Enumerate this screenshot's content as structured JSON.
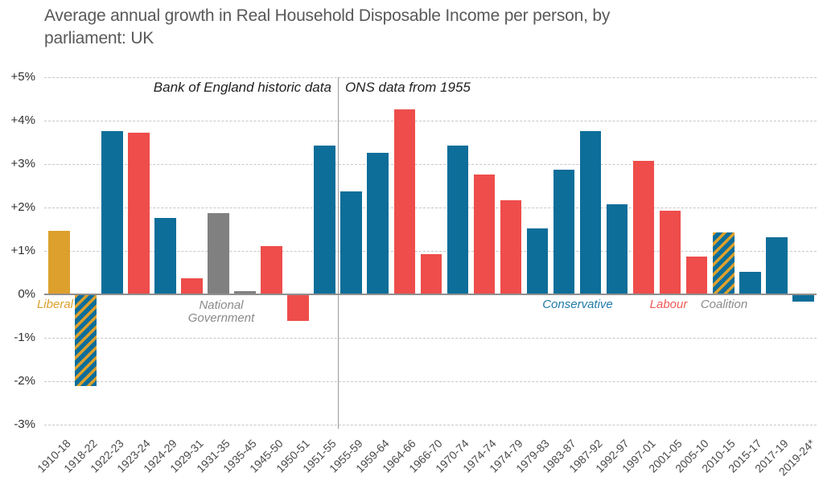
{
  "header": {
    "line1": "Average annual growth in Real Household Disposable Income per person, by",
    "line2": "parliament: UK"
  },
  "chart_data": {
    "type": "bar",
    "title": "Average annual growth in Real Household Disposable Income per person, by parliament: UK",
    "xlabel": "",
    "ylabel": "",
    "ylim": [
      -3,
      5
    ],
    "grid": "horizontal-dashed",
    "y_ticks": [
      {
        "label": "+5%",
        "value": 5
      },
      {
        "label": "+4%",
        "value": 4
      },
      {
        "label": "+3%",
        "value": 3
      },
      {
        "label": "+2%",
        "value": 2
      },
      {
        "label": "+1%",
        "value": 1
      },
      {
        "label": "0%",
        "value": 0
      },
      {
        "label": "-1%",
        "value": -1
      },
      {
        "label": "-2%",
        "value": -2
      },
      {
        "label": "-3%",
        "value": -3
      }
    ],
    "categories": [
      "1910-18",
      "1918-22",
      "1922-23",
      "1923-24",
      "1924-29",
      "1929-31",
      "1931-35",
      "1935-45",
      "1945-50",
      "1950-51",
      "1951-55",
      "1955-59",
      "1959-64",
      "1964-66",
      "1966-70",
      "1970-74",
      "1974-74",
      "1974-79",
      "1979-83",
      "1983-87",
      "1987-92",
      "1992-97",
      "1997-01",
      "2001-05",
      "2005-10",
      "2010-15",
      "2015-17",
      "2017-19",
      "2019-24*"
    ],
    "values": [
      1.45,
      -2.1,
      3.75,
      3.7,
      1.75,
      0.35,
      1.85,
      0.05,
      1.1,
      -0.6,
      3.4,
      2.35,
      3.25,
      4.25,
      0.9,
      3.4,
      2.75,
      2.15,
      1.5,
      2.85,
      3.75,
      2.05,
      3.05,
      1.9,
      0.85,
      1.4,
      0.5,
      1.3,
      -0.15
    ],
    "parties": [
      "liberal",
      "coalition",
      "conservative",
      "labour",
      "conservative",
      "labour",
      "national",
      "national",
      "labour",
      "labour",
      "conservative",
      "conservative",
      "conservative",
      "labour",
      "labour",
      "conservative",
      "labour",
      "labour",
      "conservative",
      "conservative",
      "conservative",
      "conservative",
      "labour",
      "labour",
      "labour",
      "coalition",
      "conservative",
      "conservative",
      "conservative"
    ],
    "party_colors": {
      "conservative": "#0d6e99",
      "labour": "#ee4d4b",
      "liberal": "#dda02d",
      "national": "#808080",
      "coalition_stripes": [
        "#dda02d",
        "#0d6e99"
      ]
    },
    "annotations": {
      "left_source": "Bank of England historic data",
      "right_source": "ONS data from 1955",
      "divider_between": [
        "1951-55",
        "1955-59"
      ],
      "party_labels": [
        {
          "text": "Liberal",
          "party": "liberal",
          "color": "#dda02d"
        },
        {
          "text": "National Government",
          "party": "national",
          "color": "#8a8a8a"
        },
        {
          "text": "Conservative",
          "party": "conservative",
          "color": "#1f7aa8"
        },
        {
          "text": "Labour",
          "party": "labour",
          "color": "#f05a56"
        },
        {
          "text": "Coalition",
          "party": "coalition",
          "color": "#8a8a8a"
        }
      ]
    }
  }
}
